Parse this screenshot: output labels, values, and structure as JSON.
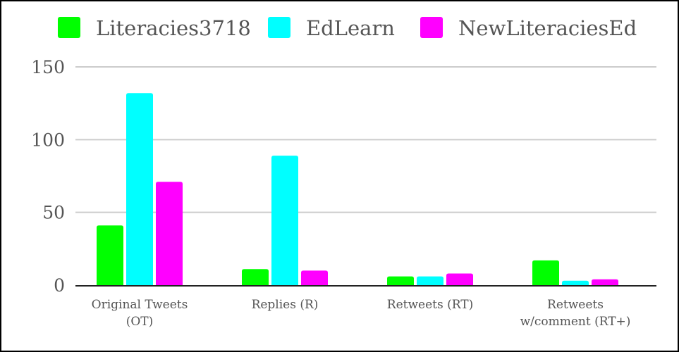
{
  "chart_data": {
    "type": "bar",
    "title": "",
    "xlabel": "",
    "ylabel": "",
    "categories": [
      [
        "Original Tweets",
        "(OT)"
      ],
      [
        "Replies (R)"
      ],
      [
        "Retweets (RT)"
      ],
      [
        "Retweets",
        "w/comment (RT+)"
      ]
    ],
    "series": [
      {
        "name": "Literacies3718",
        "color": "#00ff00",
        "values": [
          41,
          11,
          6,
          17
        ]
      },
      {
        "name": "EdLearn",
        "color": "#00ffff",
        "values": [
          132,
          89,
          6,
          3
        ]
      },
      {
        "name": "NewLiteraciesEd",
        "color": "#ff00ff",
        "values": [
          71,
          10,
          8,
          4
        ]
      }
    ],
    "ylim": [
      0,
      150
    ],
    "yticks": [
      0,
      50,
      100,
      150
    ],
    "grid": true,
    "legend_position": "top"
  }
}
